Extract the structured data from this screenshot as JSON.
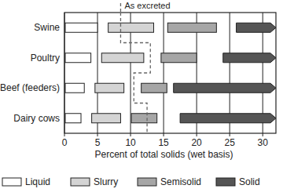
{
  "chart_data": {
    "type": "range_bar",
    "orientation": "horizontal",
    "categories": [
      "Swine",
      "Poultry",
      "Beef (feeders)",
      "Dairy cows"
    ],
    "x_label": "Percent of total solids (wet basis)",
    "xlim": [
      0,
      32
    ],
    "xticks": [
      0,
      5,
      10,
      15,
      20,
      25,
      30
    ],
    "grid": true,
    "legend": "bottom",
    "series": [
      {
        "name": "Liquid",
        "color": "#ffffff",
        "start": [
          0,
          0,
          0,
          0
        ],
        "end": [
          5,
          4,
          3,
          2.5
        ]
      },
      {
        "name": "Slurry",
        "color": "#d4d4d4",
        "start": [
          6.5,
          5.5,
          4.5,
          4
        ],
        "end": [
          13.5,
          12,
          9,
          8.5
        ]
      },
      {
        "name": "Semisolid",
        "color": "#a6a6a6",
        "start": [
          15.5,
          14.5,
          11.5,
          10
        ],
        "end": [
          23,
          20,
          15.5,
          14
        ]
      },
      {
        "name": "Solid",
        "color": "#555555",
        "marker": "arrow",
        "start": [
          26,
          24,
          16.5,
          17.5
        ],
        "end": [
          32,
          32,
          32,
          32
        ]
      }
    ],
    "annotation": {
      "text": "As excreted",
      "line_style": "dashed",
      "values": [
        8.5,
        13,
        10.5,
        12.5
      ]
    }
  }
}
